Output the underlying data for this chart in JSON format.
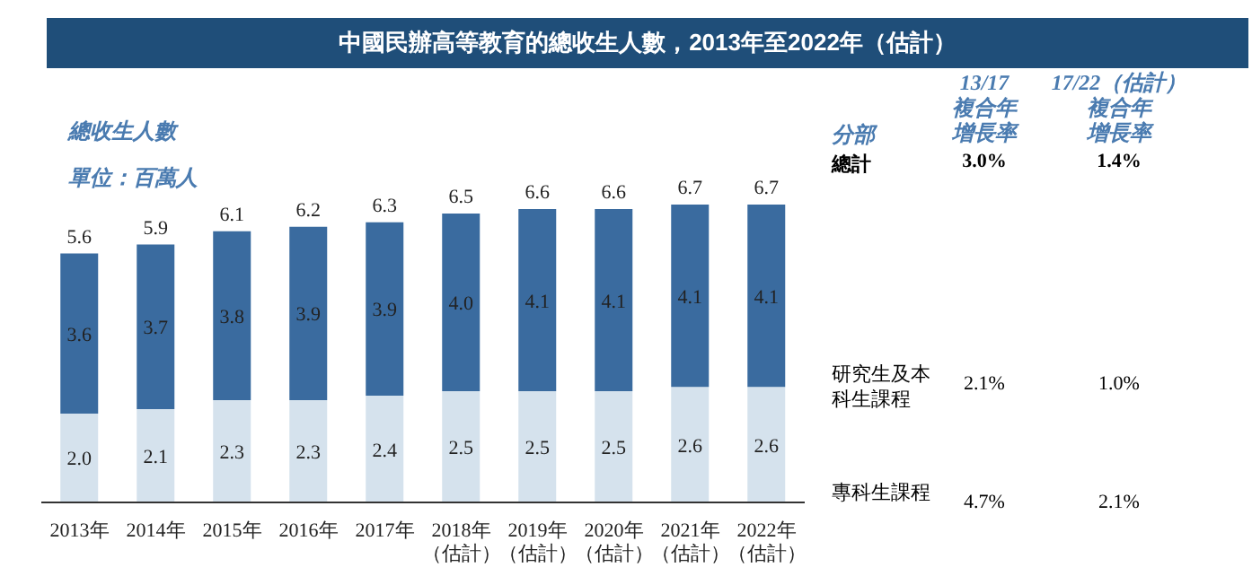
{
  "chart_data": {
    "type": "bar",
    "title": "中國民辦高等教育的總收生人數，2013年至2022年（估計）",
    "ylabel": "總收生人數",
    "stacked": true,
    "categories": [
      "2013年",
      "2014年",
      "2015年",
      "2016年",
      "2017年",
      "2018年（估計）",
      "2019年（估計）",
      "2020年（估計）",
      "2021年（估計）",
      "2022年（估計）"
    ],
    "series": [
      {
        "name": "專科生課程",
        "color": "#d5e2ed",
        "values": [
          2.0,
          2.1,
          2.3,
          2.3,
          2.4,
          2.5,
          2.5,
          2.5,
          2.6,
          2.6
        ],
        "value_labels": [
          "2.0",
          "2.1",
          "2.3",
          "2.3",
          "2.4",
          "2.5",
          "2.5",
          "2.5",
          "2.6",
          "2.6"
        ]
      },
      {
        "name": "研究生及本科生課程",
        "color": "#3a6b9f",
        "values": [
          3.6,
          3.7,
          3.8,
          3.9,
          3.9,
          4.0,
          4.1,
          4.1,
          4.1,
          4.1
        ],
        "value_labels": [
          "3.6",
          "3.7",
          "3.8",
          "3.9",
          "3.9",
          "4.0",
          "4.1",
          "4.1",
          "4.1",
          "4.1"
        ]
      }
    ],
    "totals": [
      "5.6",
      "5.9",
      "6.1",
      "6.2",
      "6.3",
      "6.5",
      "6.6",
      "6.6",
      "6.7",
      "6.7"
    ],
    "annotations": [
      "單位：百萬人",
      "分部",
      "13/17",
      "複合年增長率",
      "17/22（估計）",
      "複合年增長率",
      "總計",
      "3.0%",
      "1.4%",
      "2.1%",
      "1.0%",
      "4.7%",
      "2.1%"
    ]
  }
}
